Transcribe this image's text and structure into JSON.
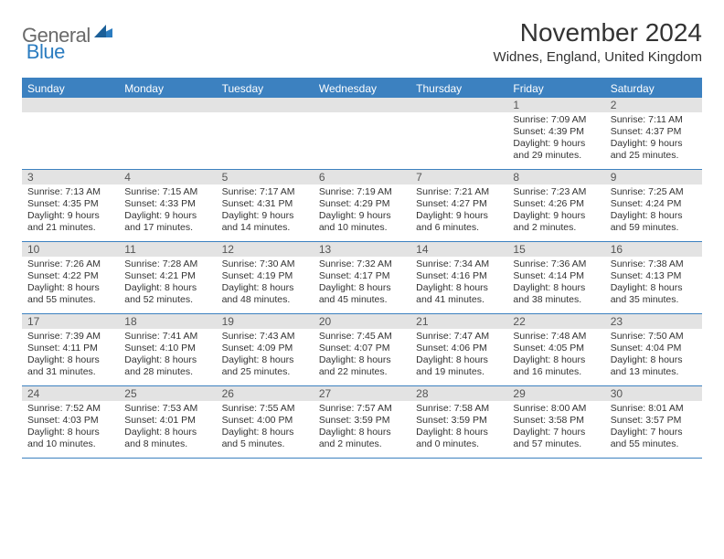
{
  "brand": {
    "text1": "General",
    "text2": "Blue"
  },
  "title": "November 2024",
  "location": "Widnes, England, United Kingdom",
  "header_bg": "#3c81c0",
  "weekdays": [
    "Sunday",
    "Monday",
    "Tuesday",
    "Wednesday",
    "Thursday",
    "Friday",
    "Saturday"
  ],
  "weeks": [
    [
      null,
      null,
      null,
      null,
      null,
      {
        "n": "1",
        "sr": "7:09 AM",
        "ss": "4:39 PM",
        "dl": "9 hours and 29 minutes."
      },
      {
        "n": "2",
        "sr": "7:11 AM",
        "ss": "4:37 PM",
        "dl": "9 hours and 25 minutes."
      }
    ],
    [
      {
        "n": "3",
        "sr": "7:13 AM",
        "ss": "4:35 PM",
        "dl": "9 hours and 21 minutes."
      },
      {
        "n": "4",
        "sr": "7:15 AM",
        "ss": "4:33 PM",
        "dl": "9 hours and 17 minutes."
      },
      {
        "n": "5",
        "sr": "7:17 AM",
        "ss": "4:31 PM",
        "dl": "9 hours and 14 minutes."
      },
      {
        "n": "6",
        "sr": "7:19 AM",
        "ss": "4:29 PM",
        "dl": "9 hours and 10 minutes."
      },
      {
        "n": "7",
        "sr": "7:21 AM",
        "ss": "4:27 PM",
        "dl": "9 hours and 6 minutes."
      },
      {
        "n": "8",
        "sr": "7:23 AM",
        "ss": "4:26 PM",
        "dl": "9 hours and 2 minutes."
      },
      {
        "n": "9",
        "sr": "7:25 AM",
        "ss": "4:24 PM",
        "dl": "8 hours and 59 minutes."
      }
    ],
    [
      {
        "n": "10",
        "sr": "7:26 AM",
        "ss": "4:22 PM",
        "dl": "8 hours and 55 minutes."
      },
      {
        "n": "11",
        "sr": "7:28 AM",
        "ss": "4:21 PM",
        "dl": "8 hours and 52 minutes."
      },
      {
        "n": "12",
        "sr": "7:30 AM",
        "ss": "4:19 PM",
        "dl": "8 hours and 48 minutes."
      },
      {
        "n": "13",
        "sr": "7:32 AM",
        "ss": "4:17 PM",
        "dl": "8 hours and 45 minutes."
      },
      {
        "n": "14",
        "sr": "7:34 AM",
        "ss": "4:16 PM",
        "dl": "8 hours and 41 minutes."
      },
      {
        "n": "15",
        "sr": "7:36 AM",
        "ss": "4:14 PM",
        "dl": "8 hours and 38 minutes."
      },
      {
        "n": "16",
        "sr": "7:38 AM",
        "ss": "4:13 PM",
        "dl": "8 hours and 35 minutes."
      }
    ],
    [
      {
        "n": "17",
        "sr": "7:39 AM",
        "ss": "4:11 PM",
        "dl": "8 hours and 31 minutes."
      },
      {
        "n": "18",
        "sr": "7:41 AM",
        "ss": "4:10 PM",
        "dl": "8 hours and 28 minutes."
      },
      {
        "n": "19",
        "sr": "7:43 AM",
        "ss": "4:09 PM",
        "dl": "8 hours and 25 minutes."
      },
      {
        "n": "20",
        "sr": "7:45 AM",
        "ss": "4:07 PM",
        "dl": "8 hours and 22 minutes."
      },
      {
        "n": "21",
        "sr": "7:47 AM",
        "ss": "4:06 PM",
        "dl": "8 hours and 19 minutes."
      },
      {
        "n": "22",
        "sr": "7:48 AM",
        "ss": "4:05 PM",
        "dl": "8 hours and 16 minutes."
      },
      {
        "n": "23",
        "sr": "7:50 AM",
        "ss": "4:04 PM",
        "dl": "8 hours and 13 minutes."
      }
    ],
    [
      {
        "n": "24",
        "sr": "7:52 AM",
        "ss": "4:03 PM",
        "dl": "8 hours and 10 minutes."
      },
      {
        "n": "25",
        "sr": "7:53 AM",
        "ss": "4:01 PM",
        "dl": "8 hours and 8 minutes."
      },
      {
        "n": "26",
        "sr": "7:55 AM",
        "ss": "4:00 PM",
        "dl": "8 hours and 5 minutes."
      },
      {
        "n": "27",
        "sr": "7:57 AM",
        "ss": "3:59 PM",
        "dl": "8 hours and 2 minutes."
      },
      {
        "n": "28",
        "sr": "7:58 AM",
        "ss": "3:59 PM",
        "dl": "8 hours and 0 minutes."
      },
      {
        "n": "29",
        "sr": "8:00 AM",
        "ss": "3:58 PM",
        "dl": "7 hours and 57 minutes."
      },
      {
        "n": "30",
        "sr": "8:01 AM",
        "ss": "3:57 PM",
        "dl": "7 hours and 55 minutes."
      }
    ]
  ],
  "labels": {
    "sunrise": "Sunrise:",
    "sunset": "Sunset:",
    "daylight": "Daylight:"
  }
}
